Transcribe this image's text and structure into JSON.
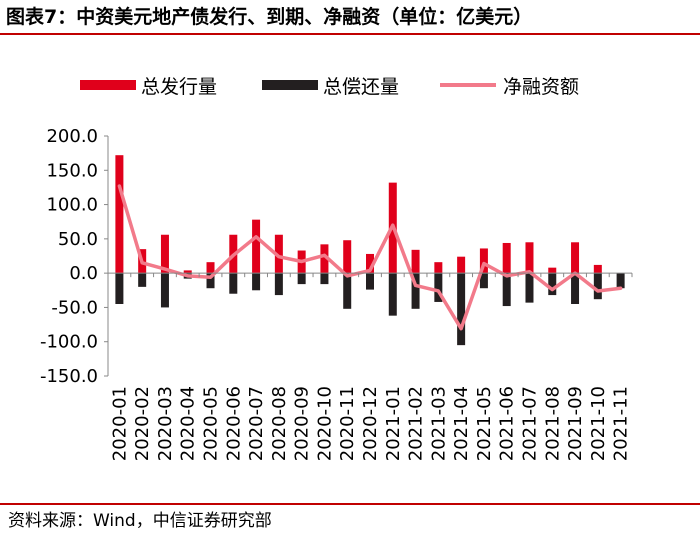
{
  "title": "图表7：中资美元地产债发行、到期、净融资（单位：亿美元）",
  "source": "资料来源：Wind，中信证券研究部",
  "colors": {
    "issuance": "#e0001b",
    "repayment": "#231f20",
    "net": "#f27a8a",
    "rule": "#c00000"
  },
  "chart_data": {
    "type": "bar",
    "categories": [
      "2020-01",
      "2020-02",
      "2020-03",
      "2020-04",
      "2020-05",
      "2020-06",
      "2020-07",
      "2020-08",
      "2020-09",
      "2020-10",
      "2020-11",
      "2020-12",
      "2021-01",
      "2021-02",
      "2021-03",
      "2021-04",
      "2021-05",
      "2021-06",
      "2021-07",
      "2021-08",
      "2021-09",
      "2021-10",
      "2021-11"
    ],
    "series": [
      {
        "name": "总发行量",
        "type": "bar",
        "values": [
          172,
          35,
          56,
          4,
          16,
          56,
          78,
          56,
          33,
          42,
          48,
          28,
          132,
          34,
          16,
          24,
          36,
          44,
          45,
          8,
          45,
          12,
          0
        ]
      },
      {
        "name": "总偿还量",
        "type": "bar",
        "values": [
          -45,
          -20,
          -50,
          -8,
          -22,
          -30,
          -25,
          -32,
          -16,
          -16,
          -52,
          -24,
          -62,
          -52,
          -42,
          -105,
          -22,
          -48,
          -43,
          -32,
          -45,
          -38,
          -22
        ]
      },
      {
        "name": "净融资额",
        "type": "line",
        "values": [
          127,
          15,
          6,
          -4,
          -6,
          26,
          53,
          24,
          17,
          26,
          -4,
          4,
          70,
          -18,
          -26,
          -81,
          14,
          -4,
          2,
          -24,
          0,
          -26,
          -22
        ]
      }
    ],
    "ylim": [
      -150,
      200
    ],
    "yticks": [
      "200.0",
      "150.0",
      "100.0",
      "50.0",
      "0.0",
      "-50.0",
      "-100.0",
      "-150.0"
    ],
    "legend": "top"
  }
}
